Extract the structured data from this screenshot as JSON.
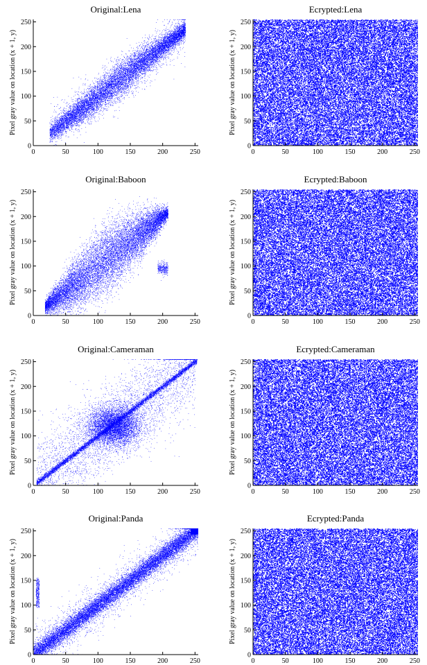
{
  "figure": {
    "ylabel_text": "Pixel gray value on location (x + 1, y)"
  },
  "chart_data": [
    {
      "type": "scatter",
      "title": "Original:Lena",
      "xlabel": "",
      "ylabel": "Pixel gray value on location (x + 1, y)",
      "xlim": [
        0,
        255
      ],
      "ylim": [
        0,
        255
      ],
      "xticks": [
        0,
        50,
        100,
        150,
        200,
        250
      ],
      "yticks": [
        0,
        50,
        100,
        150,
        200,
        250
      ],
      "grid": false,
      "color": "#0000ff",
      "pattern": "diagonal-correlated",
      "points": [
        [
          30,
          32
        ],
        [
          45,
          44
        ],
        [
          60,
          62
        ],
        [
          75,
          78
        ],
        [
          90,
          88
        ],
        [
          105,
          108
        ],
        [
          120,
          118
        ],
        [
          135,
          138
        ],
        [
          150,
          150
        ],
        [
          165,
          168
        ],
        [
          180,
          178
        ],
        [
          195,
          196
        ],
        [
          210,
          212
        ],
        [
          225,
          224
        ],
        [
          235,
          232
        ]
      ]
    },
    {
      "type": "scatter",
      "title": "Ecrypted:Lena",
      "xlabel": "",
      "ylabel": "Pixel gray value on location (x + 1, y)",
      "xlim": [
        0,
        255
      ],
      "ylim": [
        0,
        255
      ],
      "xticks": [
        0,
        50,
        100,
        150,
        200,
        250
      ],
      "yticks": [
        0,
        50,
        100,
        150,
        200,
        250
      ],
      "grid": false,
      "color": "#0000ff",
      "pattern": "uniform-random",
      "points": [
        [
          10,
          200
        ],
        [
          60,
          30
        ],
        [
          120,
          140
        ],
        [
          180,
          90
        ],
        [
          240,
          220
        ],
        [
          90,
          250
        ],
        [
          200,
          15
        ],
        [
          30,
          110
        ],
        [
          150,
          60
        ],
        [
          220,
          170
        ]
      ]
    },
    {
      "type": "scatter",
      "title": "Original:Baboon",
      "xlabel": "",
      "ylabel": "Pixel gray value on location (x + 1, y)",
      "xlim": [
        0,
        255
      ],
      "ylim": [
        0,
        255
      ],
      "xticks": [
        0,
        50,
        100,
        150,
        200,
        250
      ],
      "yticks": [
        0,
        50,
        100,
        150,
        200,
        250
      ],
      "grid": false,
      "color": "#0000ff",
      "pattern": "diagonal-wide",
      "points": [
        [
          20,
          22
        ],
        [
          40,
          45
        ],
        [
          60,
          58
        ],
        [
          80,
          85
        ],
        [
          100,
          98
        ],
        [
          120,
          125
        ],
        [
          140,
          138
        ],
        [
          160,
          165
        ],
        [
          180,
          175
        ],
        [
          200,
          205
        ],
        [
          205,
          100
        ]
      ]
    },
    {
      "type": "scatter",
      "title": "Ecrypted:Baboon",
      "xlabel": "",
      "ylabel": "Pixel gray value on location (x + 1, y)",
      "xlim": [
        0,
        255
      ],
      "ylim": [
        0,
        255
      ],
      "xticks": [
        0,
        50,
        100,
        150,
        200,
        250
      ],
      "yticks": [
        0,
        50,
        100,
        150,
        200,
        250
      ],
      "grid": false,
      "color": "#0000ff",
      "pattern": "uniform-random",
      "points": [
        [
          15,
          180
        ],
        [
          70,
          40
        ],
        [
          130,
          230
        ],
        [
          190,
          75
        ],
        [
          245,
          130
        ],
        [
          100,
          10
        ],
        [
          210,
          250
        ],
        [
          40,
          90
        ],
        [
          160,
          160
        ],
        [
          5,
          5
        ]
      ]
    },
    {
      "type": "scatter",
      "title": "Original:Cameraman",
      "xlabel": "",
      "ylabel": "Pixel gray value on location (x + 1, y)",
      "xlim": [
        0,
        255
      ],
      "ylim": [
        0,
        255
      ],
      "xticks": [
        0,
        50,
        100,
        150,
        200,
        250
      ],
      "yticks": [
        0,
        50,
        100,
        150,
        200,
        250
      ],
      "grid": false,
      "color": "#0000ff",
      "pattern": "diagonal-with-cluster",
      "points": [
        [
          10,
          10
        ],
        [
          30,
          28
        ],
        [
          50,
          52
        ],
        [
          80,
          78
        ],
        [
          110,
          115
        ],
        [
          120,
          120
        ],
        [
          130,
          125
        ],
        [
          150,
          152
        ],
        [
          180,
          178
        ],
        [
          210,
          212
        ],
        [
          240,
          240
        ],
        [
          250,
          250
        ]
      ]
    },
    {
      "type": "scatter",
      "title": "Ecrypted:Cameraman",
      "xlabel": "",
      "ylabel": "Pixel gray value on location (x + 1, y)",
      "xlim": [
        0,
        255
      ],
      "ylim": [
        0,
        255
      ],
      "xticks": [
        0,
        50,
        100,
        150,
        200,
        250
      ],
      "yticks": [
        0,
        50,
        100,
        150,
        200,
        250
      ],
      "grid": false,
      "color": "#0000ff",
      "pattern": "uniform-random",
      "points": [
        [
          25,
          240
        ],
        [
          80,
          20
        ],
        [
          140,
          110
        ],
        [
          200,
          200
        ],
        [
          250,
          40
        ],
        [
          60,
          160
        ],
        [
          170,
          10
        ],
        [
          110,
          245
        ],
        [
          230,
          120
        ],
        [
          5,
          80
        ]
      ]
    },
    {
      "type": "scatter",
      "title": "Original:Panda",
      "xlabel": "",
      "ylabel": "Pixel gray value on location (x + 1, y)",
      "xlim": [
        0,
        255
      ],
      "ylim": [
        0,
        255
      ],
      "xticks": [
        0,
        50,
        100,
        150,
        200,
        250
      ],
      "yticks": [
        0,
        50,
        100,
        150,
        200,
        250
      ],
      "grid": false,
      "color": "#0000ff",
      "pattern": "diagonal-saturated",
      "points": [
        [
          2,
          2
        ],
        [
          5,
          130
        ],
        [
          30,
          28
        ],
        [
          60,
          62
        ],
        [
          90,
          88
        ],
        [
          120,
          122
        ],
        [
          150,
          150
        ],
        [
          180,
          182
        ],
        [
          210,
          208
        ],
        [
          240,
          245
        ],
        [
          252,
          252
        ]
      ]
    },
    {
      "type": "scatter",
      "title": "Ecrypted:Panda",
      "xlabel": "",
      "ylabel": "Pixel gray value on location (x + 1, y)",
      "xlim": [
        0,
        255
      ],
      "ylim": [
        0,
        255
      ],
      "xticks": [
        0,
        50,
        100,
        150,
        200,
        250
      ],
      "yticks": [
        0,
        50,
        100,
        150,
        200,
        250
      ],
      "grid": false,
      "color": "#0000ff",
      "pattern": "uniform-random",
      "points": [
        [
          20,
          60
        ],
        [
          75,
          210
        ],
        [
          135,
          35
        ],
        [
          195,
          150
        ],
        [
          245,
          245
        ],
        [
          50,
          130
        ],
        [
          165,
          95
        ],
        [
          105,
          180
        ],
        [
          225,
          20
        ],
        [
          10,
          235
        ]
      ]
    }
  ]
}
